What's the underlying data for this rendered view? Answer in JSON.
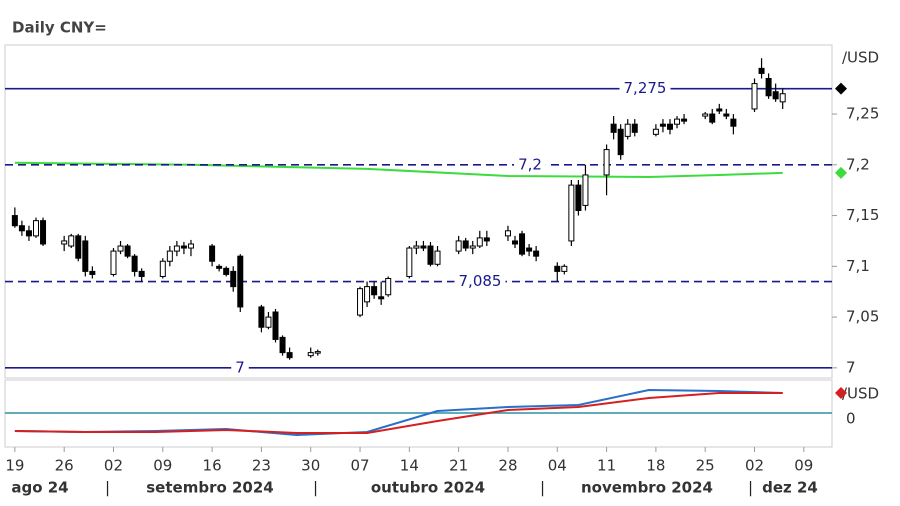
{
  "chart_data": {
    "type": "candlestick",
    "title": "Daily CNY=",
    "y_unit": "/USD",
    "xlim": [
      -1.4,
      116
    ],
    "xticks": [
      {
        "value": 0,
        "label": "19"
      },
      {
        "value": 7,
        "label": "26"
      },
      {
        "value": 14,
        "label": "02"
      },
      {
        "value": 21,
        "label": "09"
      },
      {
        "value": 28,
        "label": "16"
      },
      {
        "value": 35,
        "label": "23"
      },
      {
        "value": 42,
        "label": "30"
      },
      {
        "value": 49,
        "label": "07"
      },
      {
        "value": 56,
        "label": "14"
      },
      {
        "value": 63,
        "label": "21"
      },
      {
        "value": 70,
        "label": "28"
      },
      {
        "value": 77,
        "label": "04"
      },
      {
        "value": 84,
        "label": "11"
      },
      {
        "value": 91,
        "label": "18"
      },
      {
        "value": 98,
        "label": "25"
      },
      {
        "value": 105,
        "label": "02"
      },
      {
        "value": 112,
        "label": "09"
      }
    ],
    "period_labels": [
      "ago 24",
      "setembro 2024",
      "outubro 2024",
      "novembro 2024",
      "dez 24"
    ],
    "ylim": [
      6.99,
      7.318
    ],
    "yticks": [
      {
        "value": 7.25,
        "label": "7,25"
      },
      {
        "value": 7.2,
        "label": "7,2"
      },
      {
        "value": 7.15,
        "label": "7,15"
      },
      {
        "value": 7.1,
        "label": "7,1"
      },
      {
        "value": 7.05,
        "label": "7,05"
      },
      7
    ],
    "levels": [
      {
        "value": 7.275,
        "label": "7,275",
        "style": "solid"
      },
      {
        "value": 7.2,
        "label": "7,2",
        "style": "dashed"
      },
      {
        "value": 7.085,
        "label": "7,085",
        "style": "dashed"
      },
      {
        "value": 7,
        "label": "7",
        "style": "solid"
      }
    ],
    "level_color": "#1a1a8c",
    "candles": {
      "x": [
        0,
        1,
        2,
        3,
        4,
        7,
        8,
        9,
        10,
        11,
        14,
        15,
        16,
        17,
        18,
        21,
        22,
        23,
        24,
        25,
        28,
        29,
        30,
        31,
        32,
        35,
        36,
        37,
        38,
        39,
        42,
        43,
        49,
        50,
        51,
        52,
        53,
        56,
        57,
        58,
        59,
        60,
        63,
        64,
        65,
        66,
        67,
        70,
        71,
        72,
        73,
        74,
        77,
        78,
        79,
        80,
        81,
        84,
        85,
        86,
        87,
        88,
        91,
        92,
        93,
        94,
        95,
        98,
        99,
        100,
        101,
        102,
        105,
        106,
        107,
        108,
        109
      ],
      "open": [
        7.15,
        7.14,
        7.135,
        7.13,
        7.145,
        7.122,
        7.12,
        7.13,
        7.125,
        7.095,
        7.092,
        7.115,
        7.12,
        7.11,
        7.095,
        7.09,
        7.105,
        7.115,
        7.12,
        7.118,
        7.12,
        7.1,
        7.098,
        7.095,
        7.11,
        7.06,
        7.04,
        7.055,
        7.03,
        7.015,
        7.012,
        7.015,
        7.052,
        7.065,
        7.08,
        7.07,
        7.072,
        7.09,
        7.118,
        7.12,
        7.12,
        7.102,
        7.115,
        7.125,
        7.118,
        7.12,
        7.128,
        7.13,
        7.125,
        7.132,
        7.118,
        7.115,
        7.1,
        7.095,
        7.125,
        7.18,
        7.16,
        7.19,
        7.24,
        7.235,
        7.228,
        7.24,
        7.23,
        7.24,
        7.24,
        7.24,
        7.245,
        7.248,
        7.25,
        7.255,
        7.25,
        7.245,
        7.255,
        7.295,
        7.285,
        7.272,
        7.262
      ],
      "high": [
        7.158,
        7.145,
        7.14,
        7.148,
        7.148,
        7.13,
        7.132,
        7.132,
        7.13,
        7.1,
        7.118,
        7.125,
        7.122,
        7.112,
        7.098,
        7.108,
        7.12,
        7.125,
        7.124,
        7.126,
        7.122,
        7.102,
        7.1,
        7.1,
        7.112,
        7.062,
        7.055,
        7.058,
        7.032,
        7.02,
        7.02,
        7.018,
        7.08,
        7.085,
        7.085,
        7.085,
        7.09,
        7.12,
        7.125,
        7.125,
        7.124,
        7.12,
        7.13,
        7.128,
        7.125,
        7.135,
        7.135,
        7.14,
        7.13,
        7.135,
        7.122,
        7.12,
        7.104,
        7.102,
        7.185,
        7.185,
        7.2,
        7.22,
        7.248,
        7.24,
        7.245,
        7.245,
        7.24,
        7.245,
        7.245,
        7.248,
        7.25,
        7.252,
        7.255,
        7.26,
        7.255,
        7.25,
        7.285,
        7.305,
        7.29,
        7.28,
        7.275
      ],
      "low": [
        7.138,
        7.13,
        7.125,
        7.128,
        7.12,
        7.115,
        7.118,
        7.105,
        7.09,
        7.088,
        7.09,
        7.112,
        7.108,
        7.09,
        7.085,
        7.088,
        7.1,
        7.11,
        7.112,
        7.11,
        7.1,
        7.095,
        7.09,
        7.075,
        7.055,
        7.035,
        7.038,
        7.025,
        7.012,
        7.008,
        7.01,
        7.012,
        7.05,
        7.06,
        7.068,
        7.062,
        7.07,
        7.088,
        7.112,
        7.115,
        7.1,
        7.1,
        7.112,
        7.115,
        7.112,
        7.118,
        7.12,
        7.125,
        7.118,
        7.11,
        7.11,
        7.105,
        7.085,
        7.092,
        7.12,
        7.15,
        7.155,
        7.17,
        7.225,
        7.205,
        7.225,
        7.228,
        7.228,
        7.232,
        7.23,
        7.236,
        7.24,
        7.245,
        7.24,
        7.25,
        7.245,
        7.23,
        7.252,
        7.285,
        7.265,
        7.262,
        7.255
      ],
      "close": [
        7.14,
        7.135,
        7.13,
        7.145,
        7.122,
        7.125,
        7.13,
        7.108,
        7.095,
        7.092,
        7.115,
        7.12,
        7.11,
        7.095,
        7.09,
        7.105,
        7.115,
        7.12,
        7.118,
        7.122,
        7.105,
        7.098,
        7.092,
        7.08,
        7.06,
        7.04,
        7.05,
        7.028,
        7.015,
        7.01,
        7.015,
        7.016,
        7.078,
        7.08,
        7.072,
        7.068,
        7.088,
        7.118,
        7.12,
        7.118,
        7.102,
        7.115,
        7.125,
        7.118,
        7.12,
        7.128,
        7.125,
        7.135,
        7.122,
        7.112,
        7.115,
        7.11,
        7.095,
        7.1,
        7.18,
        7.155,
        7.19,
        7.215,
        7.232,
        7.21,
        7.24,
        7.232,
        7.235,
        7.238,
        7.235,
        7.245,
        7.243,
        7.25,
        7.242,
        7.253,
        7.248,
        7.238,
        7.28,
        7.29,
        7.268,
        7.265,
        7.27
      ]
    },
    "moving_average": {
      "color": "#3ddc3d",
      "x": [
        0,
        25,
        50,
        70,
        90,
        100,
        109
      ],
      "values": [
        7.202,
        7.2,
        7.196,
        7.189,
        7.188,
        7.19,
        7.192
      ]
    },
    "markers": [
      {
        "value": 7.275,
        "color": "#000000"
      },
      {
        "value": 7.192,
        "color": "#3ddc3d"
      }
    ],
    "indicator": {
      "y_unit": "/USD",
      "ylim": [
        -0.034,
        0.033
      ],
      "yticks": [
        0
      ],
      "zero_color": "#2f8fa0",
      "x": [
        0,
        10,
        20,
        30,
        40,
        50,
        60,
        70,
        80,
        90,
        100,
        109
      ],
      "series": [
        {
          "color": "#2a6fc9",
          "values": [
            -0.018,
            -0.019,
            -0.018,
            -0.016,
            -0.022,
            -0.019,
            0.002,
            0.006,
            0.008,
            0.023,
            0.022,
            0.02
          ]
        },
        {
          "color": "#d42020",
          "values": [
            -0.018,
            -0.019,
            -0.019,
            -0.017,
            -0.02,
            -0.02,
            -0.008,
            0.003,
            0.006,
            0.015,
            0.02,
            0.02
          ]
        }
      ],
      "marker_color": "#d42020"
    }
  }
}
